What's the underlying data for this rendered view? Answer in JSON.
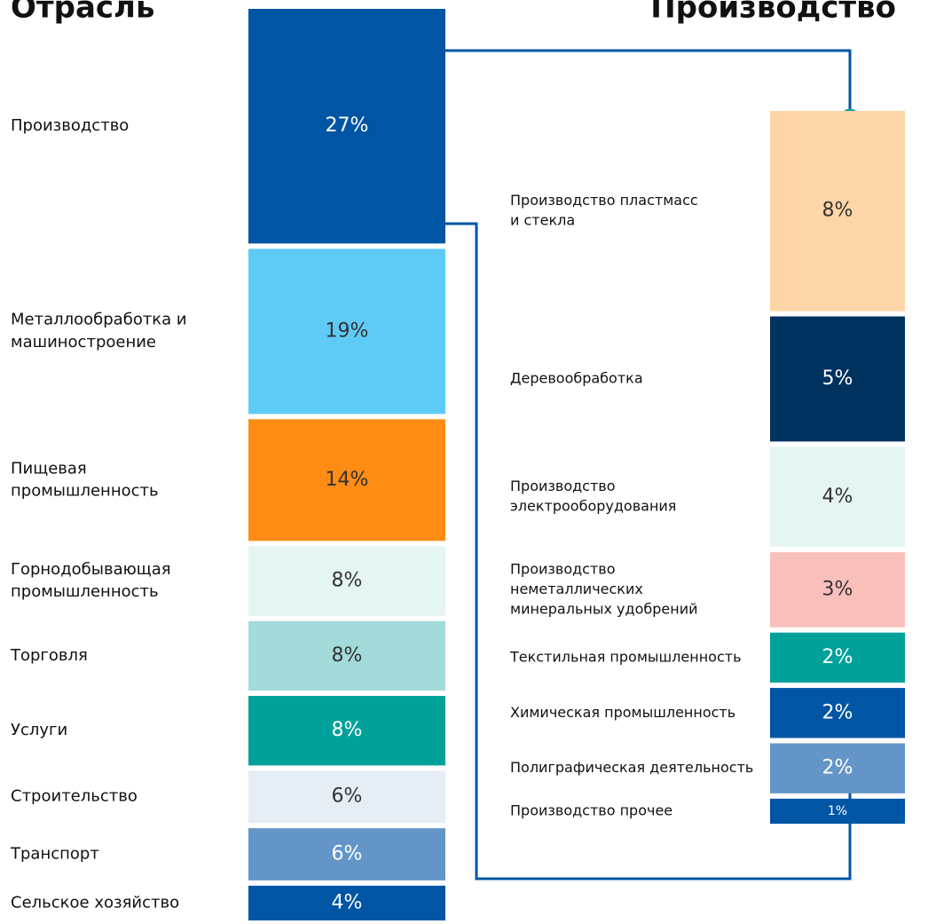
{
  "chart_data": [
    {
      "type": "stack",
      "title": "Отрасль",
      "categories": [
        [
          "Производство"
        ],
        [
          "Металлообработка и",
          "машиностроение"
        ],
        [
          "Пищевая",
          "промышленность"
        ],
        [
          "Горнодобывающая",
          "промышленность"
        ],
        [
          "Торговля"
        ],
        [
          "Услуги"
        ],
        [
          "Строительство"
        ],
        [
          "Транспорт"
        ],
        [
          "Сельское хозяйство"
        ]
      ],
      "values": [
        27,
        19,
        14,
        8,
        8,
        8,
        6,
        6,
        4
      ],
      "value_labels": [
        "27%",
        "19%",
        "14%",
        "8%",
        "8%",
        "8%",
        "6%",
        "6%",
        "4%"
      ],
      "colors": [
        "#0055a5",
        "#5ecbf7",
        "#ff8c14",
        "#e4f5f3",
        "#a2dbd9",
        "#00a19a",
        "#e5edf5",
        "#6495c8",
        "#0055a5"
      ]
    },
    {
      "type": "stack",
      "title": "Производство",
      "categories": [
        [
          "Производство пластмасс",
          "и стекла"
        ],
        [
          "Деревообработка"
        ],
        [
          "Производство",
          "электрооборудования"
        ],
        [
          "Производство",
          "неметаллических",
          "минеральных удобрений"
        ],
        [
          "Текстильная промышленность"
        ],
        [
          "Химическая промышленность"
        ],
        [
          "Полиграфическая деятельность"
        ],
        [
          "Производство прочее"
        ]
      ],
      "values": [
        8,
        5,
        4,
        3,
        2,
        2,
        2,
        1
      ],
      "value_labels": [
        "8%",
        "5%",
        "4%",
        "3%",
        "2%",
        "2%",
        "2%",
        "1%"
      ],
      "colors": [
        "#fed5a6",
        "#00325f",
        "#e4f5f3",
        "#f9bfbb",
        "#00a19a",
        "#0055a5",
        "#6495c8",
        "#0055a5"
      ]
    }
  ]
}
